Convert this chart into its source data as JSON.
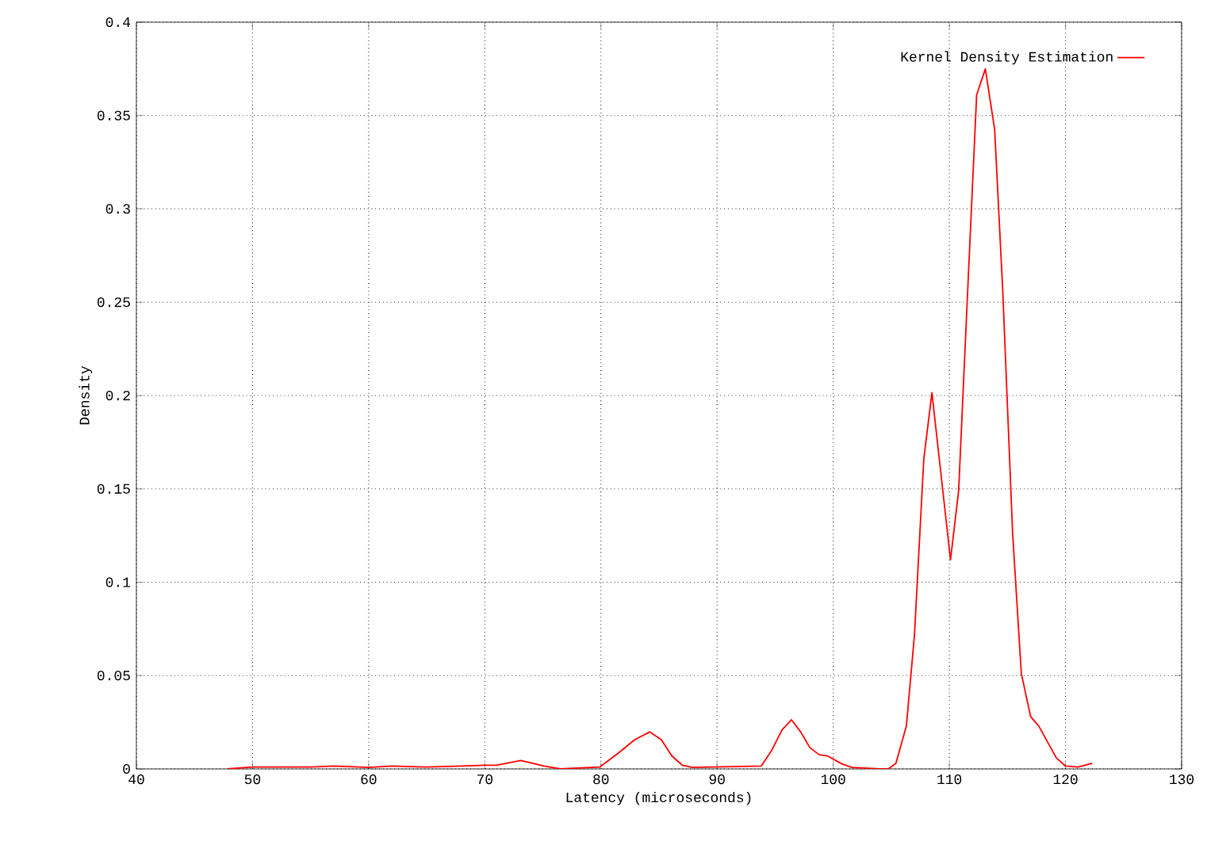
{
  "chart_data": {
    "type": "line",
    "xlabel": "Latency (microseconds)",
    "ylabel": "Density",
    "xlim": [
      40,
      130
    ],
    "ylim": [
      0,
      0.4
    ],
    "xticks": [
      40,
      50,
      60,
      70,
      80,
      90,
      100,
      110,
      120,
      130
    ],
    "yticks": [
      0,
      0.05,
      0.1,
      0.15,
      0.2,
      0.25,
      0.3,
      0.35,
      0.4
    ],
    "grid": true,
    "legend": "top right",
    "series": [
      {
        "name": "Kernel Density Estimation",
        "color": "#ff0000",
        "x": [
          47.8,
          50,
          55,
          57,
          60,
          62,
          65,
          68,
          70,
          71,
          73.1,
          75.1,
          76.5,
          79.9,
          81.5,
          82.9,
          84.2,
          85.2,
          86.1,
          87.0,
          87.9,
          93.8,
          94.7,
          95.6,
          96.4,
          97.2,
          98.0,
          98.8,
          99.5,
          100.7,
          101.6,
          104,
          104.75,
          105.4,
          106.3,
          107.0,
          107.8,
          108.5,
          110.1,
          110.8,
          111.6,
          112.35,
          113.1,
          113.9,
          114.6,
          115.45,
          116.2,
          117.0,
          117.7,
          119.2,
          120.0,
          121.1,
          122.3
        ],
        "values": [
          0.0,
          0.001,
          0.001,
          0.0015,
          0.0008,
          0.0015,
          0.001,
          0.0015,
          0.002,
          0.002,
          0.0045,
          0.0015,
          0.0,
          0.001,
          0.0085,
          0.0156,
          0.0198,
          0.0156,
          0.007,
          0.002,
          0.0008,
          0.0015,
          0.0099,
          0.021,
          0.0263,
          0.0198,
          0.0113,
          0.0076,
          0.007,
          0.0028,
          0.0008,
          0.0,
          0.0,
          0.003,
          0.023,
          0.072,
          0.166,
          0.2015,
          0.112,
          0.149,
          0.259,
          0.361,
          0.375,
          0.3425,
          0.256,
          0.126,
          0.051,
          0.028,
          0.023,
          0.006,
          0.0015,
          0.001,
          0.003
        ]
      }
    ]
  }
}
